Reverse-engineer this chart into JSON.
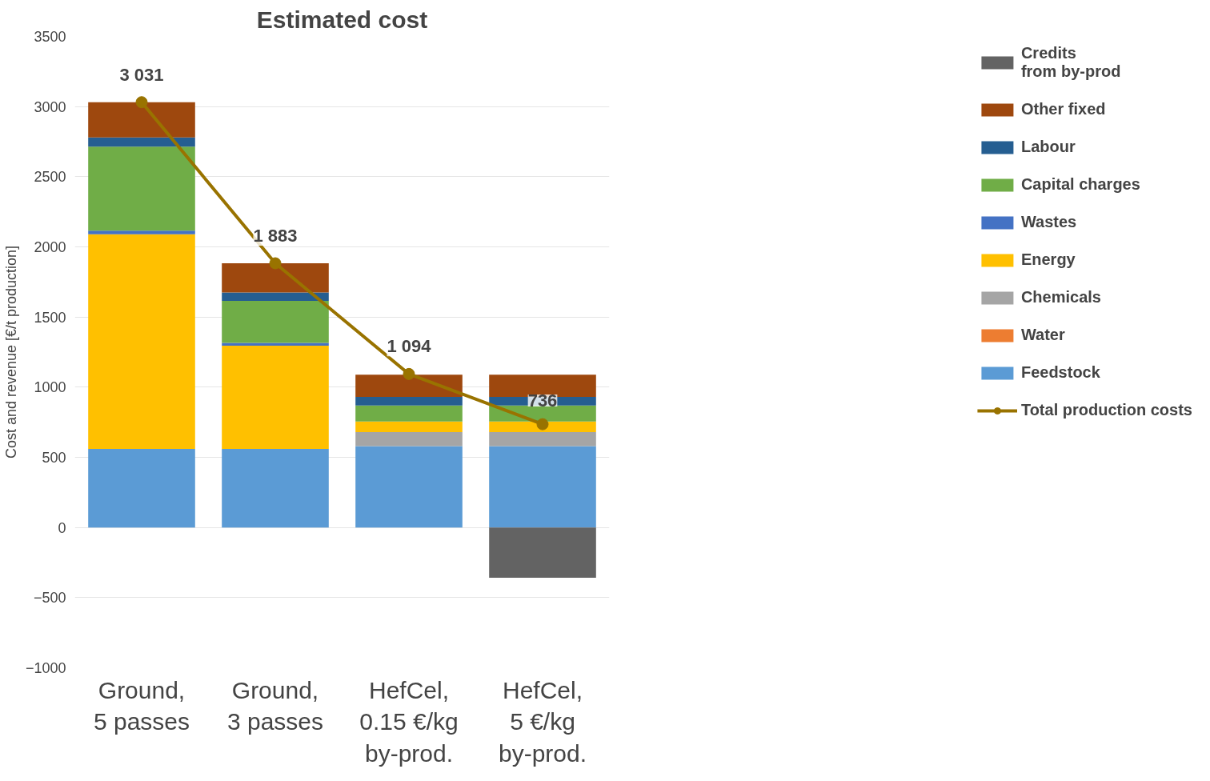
{
  "chart_data": {
    "type": "bar",
    "title": "Estimated cost",
    "ylabel": "Cost and revenue [€/t production]",
    "stacked": true,
    "categories": [
      "Ground,\n5 passes",
      "Ground,\n3 passes",
      "HefCel,\n0.15 €/kg\nby-prod.",
      "HefCel,\n5 €/kg\nby-prod."
    ],
    "ylim": [
      -1000,
      3500
    ],
    "yticks": [
      -1000,
      -500,
      0,
      500,
      1000,
      1500,
      2000,
      2500,
      3000,
      3500
    ],
    "grid": "y",
    "legend": "right",
    "series": [
      {
        "name": "Feedstock",
        "color": "#5b9bd5",
        "values": [
          560,
          560,
          580,
          580
        ]
      },
      {
        "name": "Water",
        "color": "#ed7d31",
        "values": [
          0,
          0,
          0,
          0
        ]
      },
      {
        "name": "Chemicals",
        "color": "#a5a5a5",
        "values": [
          0,
          0,
          100,
          100
        ]
      },
      {
        "name": "Energy",
        "color": "#ffc000",
        "values": [
          1530,
          735,
          75,
          75
        ]
      },
      {
        "name": "Wastes",
        "color": "#4472c4",
        "values": [
          25,
          20,
          null,
          null
        ]
      },
      {
        "name": "Capital charges",
        "color": "#70ad47",
        "values": [
          600,
          300,
          115,
          115
        ]
      },
      {
        "name": "Labour",
        "color": "#255e91",
        "values": [
          65,
          60,
          60,
          60
        ]
      },
      {
        "name": "Other fixed",
        "color": "#9e480e",
        "values": [
          251,
          208,
          159,
          159
        ]
      },
      {
        "name": "Credits\nfrom by-prod",
        "color": "#636363",
        "values": [
          0,
          0,
          0,
          -358
        ]
      },
      {
        "name": "Total production costs",
        "type": "line",
        "color": "#997300",
        "marker": "circle",
        "values": [
          3031,
          1883,
          1094,
          736
        ],
        "value_labels": [
          "3 031",
          "1 883",
          "1 094",
          "736"
        ]
      }
    ]
  }
}
